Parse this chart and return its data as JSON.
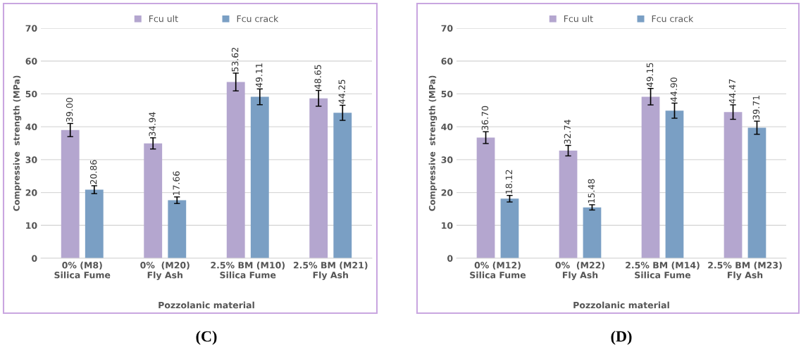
{
  "chart_data": [
    {
      "type": "bar",
      "title": "(C)",
      "xlabel": "Pozzolanic material",
      "ylabel": "Compressive  strength (MPa)",
      "categories": [
        "0% (M8)\nSilica Fume",
        "0%  (M20)\nFly Ash",
        "2.5% BM (M10)\nSilica Fume",
        "2.5% BM (M21)\nFly Ash"
      ],
      "series": [
        {
          "name": "Fcu ult",
          "color": "#b4a6cf",
          "values": [
            39.0,
            34.94,
            53.62,
            48.65
          ],
          "errors": [
            2.0,
            1.7,
            2.7,
            2.4
          ],
          "value_labels": [
            "39.00",
            "34.94",
            "53.62",
            "48.65"
          ]
        },
        {
          "name": "Fcu crack",
          "color": "#7a9fc4",
          "values": [
            20.86,
            17.66,
            49.11,
            44.25
          ],
          "errors": [
            1.2,
            1.0,
            2.4,
            2.3
          ],
          "value_labels": [
            "20.86",
            "17.66",
            "49.11",
            "44.25"
          ]
        }
      ],
      "ylim": [
        0,
        70
      ],
      "yticks": [
        0,
        10,
        20,
        30,
        40,
        50,
        60,
        70
      ],
      "grid": "y",
      "legend": "top"
    },
    {
      "type": "bar",
      "title": "(D)",
      "xlabel": "Pozzolanic material",
      "ylabel": "Compressive  strength (MPa)",
      "categories": [
        "0% (M12)\nSilica Fume",
        "0%  (M22)\nFly Ash",
        "2.5% BM (M14)\nSilica Fume",
        "2.5% BM (M23)\nFly Ash"
      ],
      "series": [
        {
          "name": "Fcu ult",
          "color": "#b4a6cf",
          "values": [
            36.7,
            32.74,
            49.15,
            44.47
          ],
          "errors": [
            1.8,
            1.6,
            2.5,
            2.2
          ],
          "value_labels": [
            "36.70",
            "32.74",
            "49.15",
            "44.47"
          ]
        },
        {
          "name": "Fcu crack",
          "color": "#7a9fc4",
          "values": [
            18.12,
            15.48,
            44.9,
            39.71
          ],
          "errors": [
            1.0,
            0.8,
            2.3,
            2.0
          ],
          "value_labels": [
            "18.12",
            "15.48",
            "44.90",
            "39.71"
          ]
        }
      ],
      "ylim": [
        0,
        70
      ],
      "yticks": [
        0,
        10,
        20,
        30,
        40,
        50,
        60,
        70
      ],
      "grid": "y",
      "legend": "top"
    }
  ]
}
